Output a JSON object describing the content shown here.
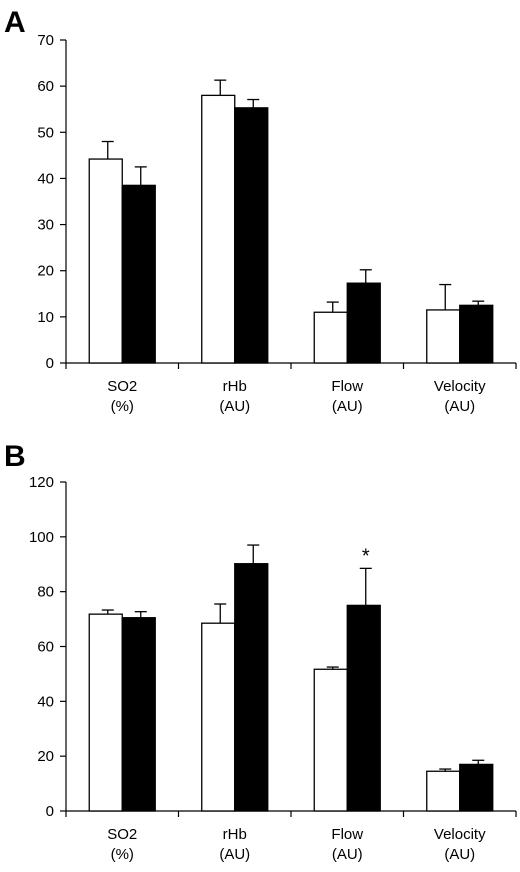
{
  "panels": [
    {
      "label": "A",
      "chart_data": {
        "type": "bar",
        "categories": [
          "SO2\n(%)",
          "rHb\n(AU)",
          "Flow\n(AU)",
          "Velocity\n(AU)"
        ],
        "series": [
          {
            "color": "#ffffff",
            "values": [
              44.2,
              58.0,
              11.0,
              11.5
            ],
            "errors": [
              3.8,
              3.3,
              2.2,
              5.5
            ]
          },
          {
            "color": "#000000",
            "values": [
              38.5,
              55.3,
              17.3,
              12.5
            ],
            "errors": [
              4.0,
              1.8,
              2.9,
              0.9
            ]
          }
        ],
        "ylim": [
          0,
          70
        ],
        "yticks": [
          0,
          10,
          20,
          30,
          40,
          50,
          60,
          70
        ],
        "annotations": []
      }
    },
    {
      "label": "B",
      "chart_data": {
        "type": "bar",
        "categories": [
          "SO2\n(%)",
          "rHb\n(AU)",
          "Flow\n(AU)",
          "Velocity\n(AU)"
        ],
        "series": [
          {
            "color": "#ffffff",
            "values": [
              71.8,
              68.5,
              51.7,
              14.5
            ],
            "errors": [
              1.5,
              7.0,
              0.8,
              0.8
            ]
          },
          {
            "color": "#000000",
            "values": [
              70.5,
              90.2,
              75.0,
              17.0
            ],
            "errors": [
              2.2,
              6.8,
              13.5,
              1.5
            ]
          }
        ],
        "ylim": [
          0,
          120
        ],
        "yticks": [
          0,
          20,
          40,
          60,
          80,
          100,
          120
        ],
        "annotations": [
          {
            "category": 2,
            "series": 1,
            "text": "*"
          }
        ]
      }
    }
  ]
}
